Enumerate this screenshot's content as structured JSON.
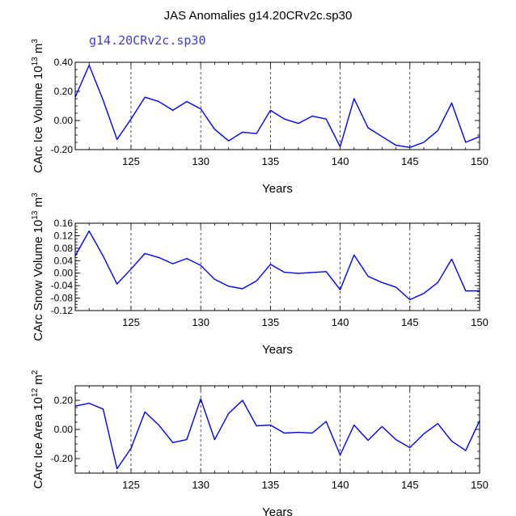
{
  "title": "JAS Anomalies g14.20CRv2c.sp30",
  "subtitle": "g14.20CRv2c.sp30",
  "colors": {
    "series": "#0000ff",
    "axis": "#000000",
    "subtitle": "#3c3cd2"
  },
  "chart_data": [
    {
      "type": "line",
      "xlabel": "Years",
      "ylabel_prefix": "CArc Ice Volume 10",
      "ylabel_exp": "13",
      "ylabel_unit": "m",
      "ylabel_unit_exp": "3",
      "xlim": [
        121,
        150
      ],
      "ylim": [
        -0.2,
        0.4
      ],
      "xticks": [
        125,
        130,
        135,
        140,
        145,
        150
      ],
      "yticks": [
        -0.2,
        0.0,
        0.2,
        0.4
      ],
      "ytick_labels": [
        "-0.20",
        "0.00",
        "0.20",
        "0.40"
      ],
      "vlines": [
        125,
        130,
        135,
        140,
        145
      ],
      "x": [
        121,
        122,
        123,
        124,
        125,
        126,
        127,
        128,
        129,
        130,
        131,
        132,
        133,
        134,
        135,
        136,
        137,
        138,
        139,
        140,
        141,
        142,
        143,
        144,
        145,
        146,
        147,
        148,
        149,
        150
      ],
      "series": [
        {
          "values": [
            0.16,
            0.38,
            0.14,
            -0.13,
            0.01,
            0.16,
            0.13,
            0.07,
            0.13,
            0.08,
            -0.06,
            -0.14,
            -0.08,
            -0.09,
            0.07,
            0.01,
            -0.02,
            0.03,
            0.01,
            -0.18,
            0.15,
            -0.05,
            -0.11,
            -0.17,
            -0.185,
            -0.15,
            -0.07,
            0.12,
            -0.15,
            -0.11
          ]
        }
      ]
    },
    {
      "type": "line",
      "xlabel": "Years",
      "ylabel_prefix": "CArc Snow Volume 10",
      "ylabel_exp": "13",
      "ylabel_unit": "m",
      "ylabel_unit_exp": "3",
      "xlim": [
        121,
        150
      ],
      "ylim": [
        -0.12,
        0.16
      ],
      "xticks": [
        125,
        130,
        135,
        140,
        145,
        150
      ],
      "yticks": [
        -0.12,
        -0.08,
        -0.04,
        0.0,
        0.04,
        0.08,
        0.12,
        0.16
      ],
      "ytick_labels": [
        "-0.12",
        "-0.08",
        "-0.04",
        "0.00",
        "0.04",
        "0.08",
        "0.12",
        "0.16"
      ],
      "vlines": [
        125,
        130,
        135,
        140,
        145
      ],
      "x": [
        121,
        122,
        123,
        124,
        125,
        126,
        127,
        128,
        129,
        130,
        131,
        132,
        133,
        134,
        135,
        136,
        137,
        138,
        139,
        140,
        141,
        142,
        143,
        144,
        145,
        146,
        147,
        148,
        149,
        150
      ],
      "series": [
        {
          "values": [
            0.055,
            0.135,
            0.055,
            -0.035,
            0.013,
            0.063,
            0.05,
            0.03,
            0.047,
            0.025,
            -0.02,
            -0.042,
            -0.05,
            -0.025,
            0.028,
            0.003,
            -0.001,
            0.002,
            0.005,
            -0.053,
            0.058,
            -0.01,
            -0.03,
            -0.045,
            -0.085,
            -0.065,
            -0.03,
            0.045,
            -0.057,
            -0.057
          ]
        }
      ]
    },
    {
      "type": "line",
      "xlabel": "Years",
      "ylabel_prefix": "CArc Ice Area 10",
      "ylabel_exp": "12",
      "ylabel_unit": "m",
      "ylabel_unit_exp": "2",
      "xlim": [
        121,
        150
      ],
      "ylim": [
        -0.3,
        0.3
      ],
      "xticks": [
        125,
        130,
        135,
        140,
        145,
        150
      ],
      "yticks": [
        -0.2,
        0.0,
        0.2
      ],
      "ytick_labels": [
        "-0.20",
        "0.00",
        "0.20"
      ],
      "vlines": [
        125,
        130,
        135,
        140,
        145
      ],
      "x": [
        121,
        122,
        123,
        124,
        125,
        126,
        127,
        128,
        129,
        130,
        131,
        132,
        133,
        134,
        135,
        136,
        137,
        138,
        139,
        140,
        141,
        142,
        143,
        144,
        145,
        146,
        147,
        148,
        149,
        150
      ],
      "series": [
        {
          "values": [
            0.16,
            0.18,
            0.14,
            -0.27,
            -0.13,
            0.12,
            0.03,
            -0.09,
            -0.07,
            0.21,
            -0.07,
            0.11,
            0.2,
            0.025,
            0.03,
            -0.025,
            -0.02,
            -0.025,
            0.055,
            -0.175,
            0.03,
            -0.075,
            0.02,
            -0.07,
            -0.125,
            -0.03,
            0.04,
            -0.08,
            -0.145,
            0.06
          ]
        }
      ]
    }
  ]
}
